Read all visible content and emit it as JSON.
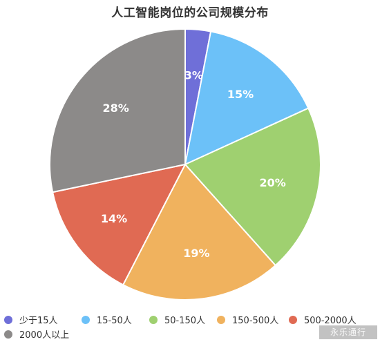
{
  "chart_data": {
    "type": "pie",
    "title": "人工智能岗位的公司规模分布",
    "legend_position": "bottom",
    "slices": [
      {
        "label": "少于15人",
        "value": 3,
        "display": "3%",
        "color": "#6f6fd8"
      },
      {
        "label": "15-50人",
        "value": 15,
        "display": "15%",
        "color": "#6cc1f8"
      },
      {
        "label": "50-150人",
        "value": 20,
        "display": "20%",
        "color": "#9fd070"
      },
      {
        "label": "150-500人",
        "value": 19,
        "display": "19%",
        "color": "#f0b25e"
      },
      {
        "label": "500-2000人",
        "value": 14,
        "display": "14%",
        "color": "#e06a53"
      },
      {
        "label": "2000人以上",
        "value": 28,
        "display": "28%",
        "color": "#8c8a89"
      }
    ]
  },
  "watermark": {
    "text": "永乐通行"
  }
}
